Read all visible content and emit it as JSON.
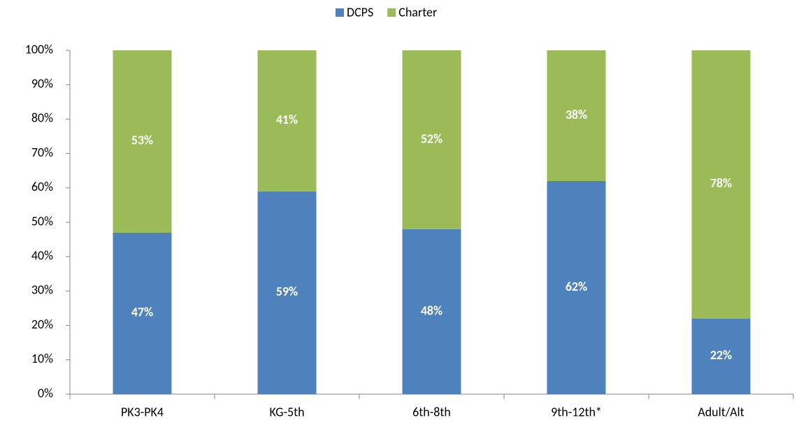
{
  "chart_data": {
    "type": "stacked_bar",
    "categories": [
      "PK3-PK4",
      "KG-5th",
      "6th-8th",
      "9th-12th*",
      "Adult/Alt"
    ],
    "series": [
      {
        "name": "DCPS",
        "color": "#4f81bd",
        "values": [
          47,
          59,
          48,
          62,
          22
        ],
        "value_labels": [
          "47%",
          "59%",
          "48%",
          "62%",
          "22%"
        ]
      },
      {
        "name": "Charter",
        "color": "#9bbb59",
        "values": [
          53,
          41,
          52,
          38,
          78
        ],
        "value_labels": [
          "53%",
          "41%",
          "52%",
          "38%",
          "78%"
        ]
      }
    ],
    "ylim": [
      0,
      100
    ],
    "yticks": [
      {
        "value": 0,
        "label": "0%"
      },
      {
        "value": 10,
        "label": "10%"
      },
      {
        "value": 20,
        "label": "20%"
      },
      {
        "value": 30,
        "label": "30%"
      },
      {
        "value": 40,
        "label": "40%"
      },
      {
        "value": 50,
        "label": "50%"
      },
      {
        "value": 60,
        "label": "60%"
      },
      {
        "value": 70,
        "label": "70%"
      },
      {
        "value": 80,
        "label": "80%"
      },
      {
        "value": 90,
        "label": "90%"
      },
      {
        "value": 100,
        "label": "100%"
      }
    ],
    "legend": "top",
    "grid": false
  }
}
